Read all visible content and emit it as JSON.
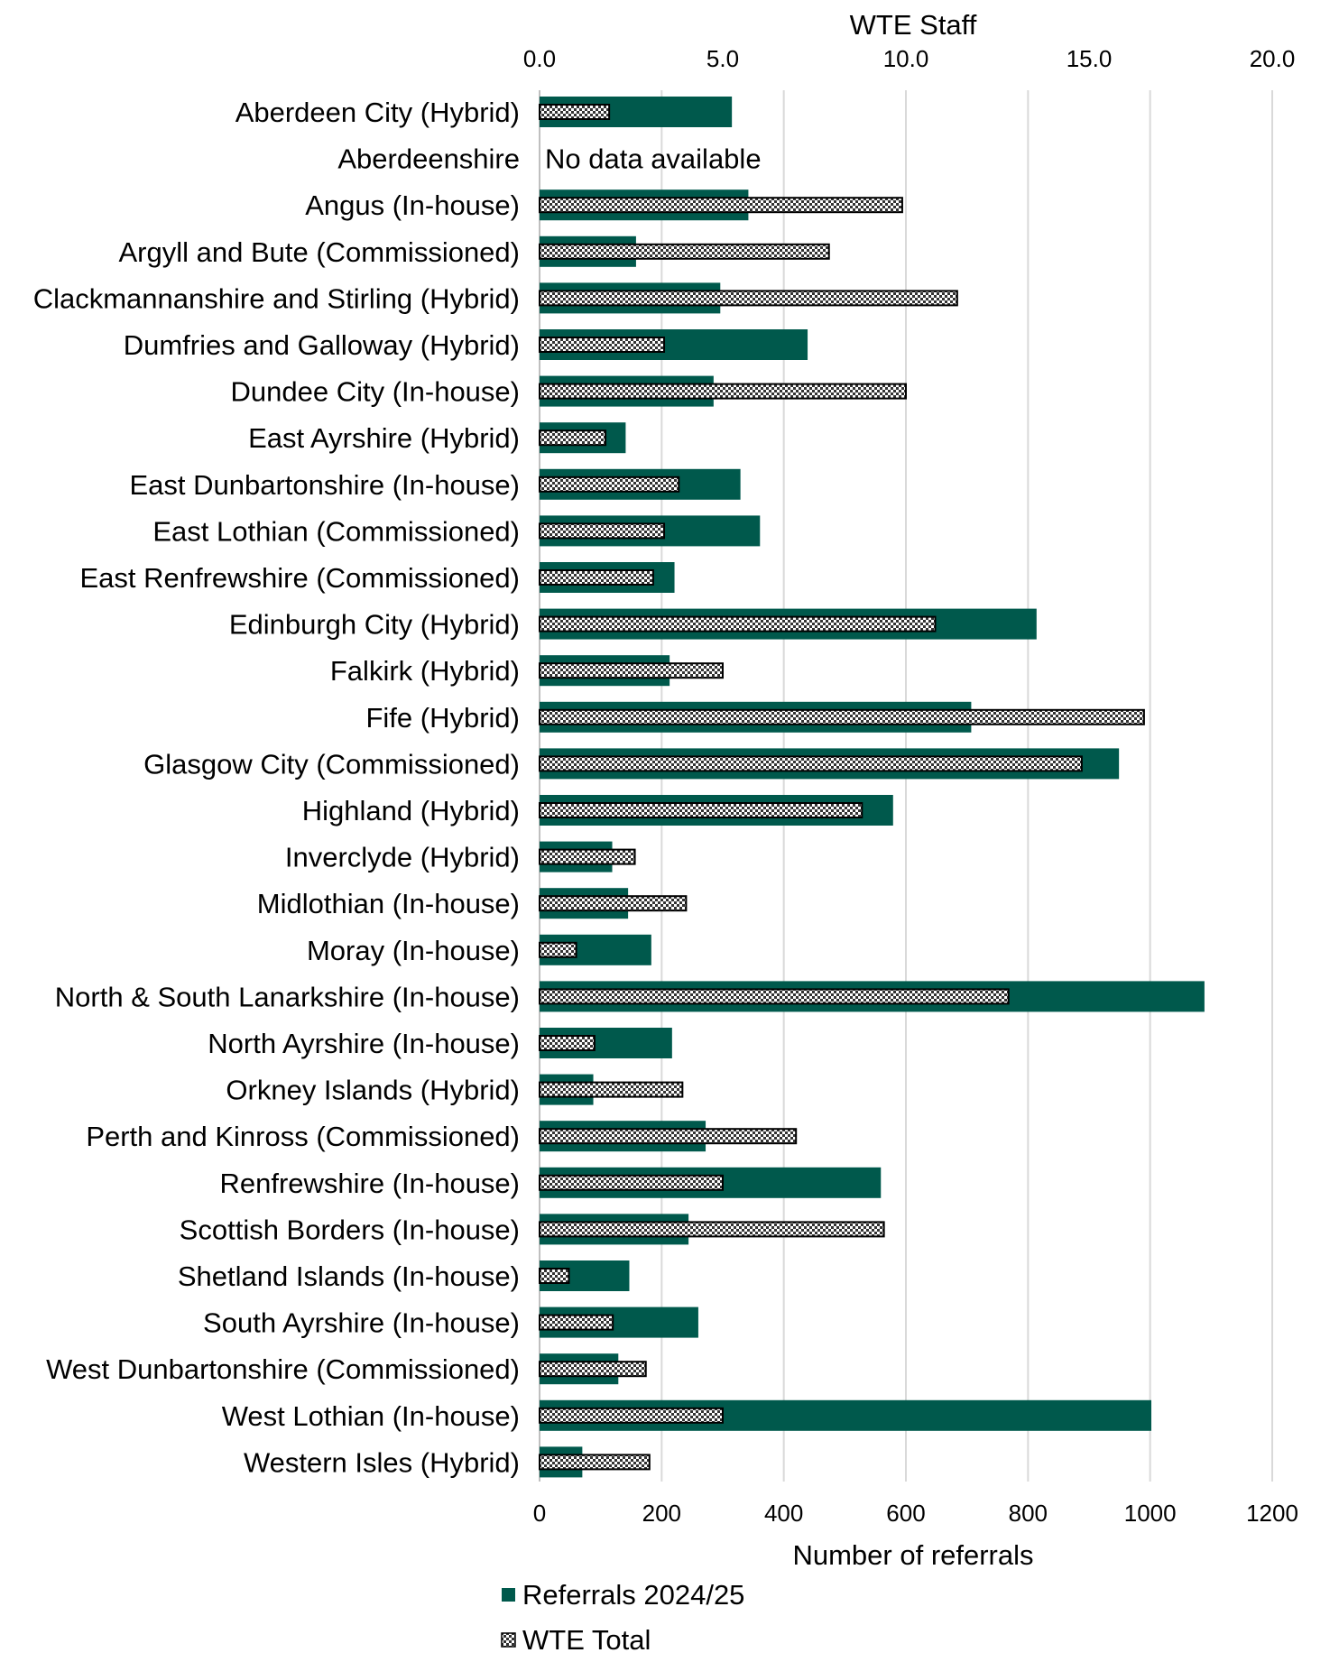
{
  "chart_data": {
    "type": "bar",
    "orientation": "horizontal",
    "top_axis": {
      "title": "WTE Staff",
      "ticks": [
        "0.0",
        "5.0",
        "10.0",
        "15.0",
        "20.0"
      ],
      "range": [
        0,
        20
      ]
    },
    "bottom_axis": {
      "title": "Number of referrals",
      "ticks": [
        "0",
        "200",
        "400",
        "600",
        "800",
        "1000",
        "1200"
      ],
      "range": [
        0,
        1200
      ]
    },
    "grid": "vertical",
    "no_data_label": "No data available",
    "legend": {
      "position": "bottom",
      "items": [
        {
          "label": "Referrals 2024/25",
          "style": "solid"
        },
        {
          "label": "WTE Total",
          "style": "checker"
        }
      ]
    },
    "colors": {
      "referrals": "#00594C",
      "wte_dark": "#333333",
      "wte_light": "#ffffff",
      "grid": "#d9d9d9"
    },
    "categories": [
      "Aberdeen City (Hybrid)",
      "Aberdeenshire",
      "Angus (In-house)",
      "Argyll and Bute (Commissioned)",
      "Clackmannanshire and Stirling (Hybrid)",
      "Dumfries and Galloway (Hybrid)",
      "Dundee City (In-house)",
      "East Ayrshire (Hybrid)",
      "East Dunbartonshire (In-house)",
      "East Lothian (Commissioned)",
      "East Renfrewshire (Commissioned)",
      "Edinburgh City (Hybrid)",
      "Falkirk (Hybrid)",
      "Fife (Hybrid)",
      "Glasgow City (Commissioned)",
      "Highland (Hybrid)",
      "Inverclyde (Hybrid)",
      "Midlothian (In-house)",
      "Moray (In-house)",
      "North & South Lanarkshire (In-house)",
      "North Ayrshire (In-house)",
      "Orkney Islands (Hybrid)",
      "Perth and Kinross (Commissioned)",
      "Renfrewshire (In-house)",
      "Scottish Borders (In-house)",
      "Shetland Islands (In-house)",
      "South Ayrshire (In-house)",
      "West Dunbartonshire (Commissioned)",
      "West Lothian (In-house)",
      "Western Isles (Hybrid)"
    ],
    "series": [
      {
        "name": "Referrals 2024/25",
        "axis": "bottom",
        "values": [
          315,
          null,
          342,
          158,
          296,
          439,
          285,
          141,
          329,
          361,
          221,
          814,
          213,
          707,
          949,
          579,
          119,
          145,
          183,
          1089,
          217,
          88,
          272,
          559,
          244,
          147,
          260,
          129,
          1002,
          70
        ]
      },
      {
        "name": "WTE Total",
        "axis": "top",
        "values": [
          1.9,
          null,
          9.9,
          7.9,
          11.4,
          3.4,
          10.0,
          1.8,
          3.8,
          3.4,
          3.1,
          10.8,
          5.0,
          16.5,
          14.8,
          8.8,
          2.6,
          4.0,
          1.0,
          12.8,
          1.5,
          3.9,
          7.0,
          5.0,
          9.4,
          0.8,
          2.0,
          2.9,
          5.0,
          3.0
        ]
      }
    ]
  }
}
